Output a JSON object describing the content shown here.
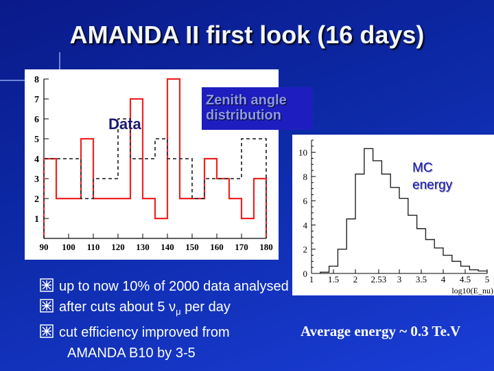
{
  "slide": {
    "title": "AMANDA II first look (16 days)",
    "panel_label": "Zenith angle distribution",
    "data_label": "Data",
    "mc_label_line1": "MC",
    "mc_label_line2": "energy",
    "bullets": [
      "up to now 10% of 2000 data analysed",
      "after cuts about 5 ν",
      "cut efficiency improved from",
      "AMANDA B10 by 3-5"
    ],
    "bullet_sub": "μ",
    "bullet_tail": " per day",
    "average_energy": "Average energy ~ 0.3 Te.V"
  },
  "chart_data": [
    {
      "type": "histogram",
      "xlim": [
        90,
        180
      ],
      "ylim": [
        0,
        8
      ],
      "x_ticks": [
        90,
        100,
        110,
        120,
        130,
        140,
        150,
        160,
        170,
        180
      ],
      "y_ticks": [
        1,
        2,
        3,
        4,
        5,
        6,
        7,
        8
      ],
      "bin_edges": [
        90,
        95,
        100,
        105,
        110,
        115,
        120,
        125,
        130,
        135,
        140,
        145,
        150,
        155,
        160,
        165,
        170,
        175,
        180
      ],
      "series": [
        {
          "values": [
            4,
            2,
            2,
            5,
            2,
            2,
            2,
            7,
            2,
            1,
            8,
            2,
            2,
            4,
            3,
            2,
            1,
            3
          ],
          "style": "solid",
          "color": "#ee2222"
        },
        {
          "values": [
            4,
            4,
            4,
            2,
            3,
            3,
            6,
            4,
            4,
            5,
            4,
            4,
            2,
            3,
            3,
            3,
            5,
            5
          ],
          "style": "dashed",
          "color": "#333333"
        }
      ]
    },
    {
      "type": "histogram",
      "xlabel": "log10(E_nu)",
      "xlim": [
        1,
        5
      ],
      "ylim": [
        0,
        11
      ],
      "x_ticks": [
        {
          "v": 1,
          "label": "1"
        },
        {
          "v": 1.5,
          "label": "1.5"
        },
        {
          "v": 2,
          "label": "2"
        },
        {
          "v": 2.53,
          "label": "2.53"
        },
        {
          "v": 3,
          "label": "3"
        },
        {
          "v": 3.5,
          "label": "3.5"
        },
        {
          "v": 4,
          "label": "4"
        },
        {
          "v": 4.5,
          "label": "4.5"
        },
        {
          "v": 5,
          "label": "5"
        }
      ],
      "y_ticks": [
        0,
        2,
        4,
        6,
        8,
        10
      ],
      "bin_width": 0.2,
      "bin_edges_start": 1.2,
      "values": [
        0.1,
        0.6,
        2.0,
        4.5,
        8.2,
        10.3,
        9.3,
        8.2,
        7.1,
        6.2,
        4.8,
        3.7,
        2.8,
        2.1,
        1.5,
        1.0,
        0.6,
        0.3,
        0.2
      ],
      "style": "solid",
      "color": "#222222"
    }
  ]
}
